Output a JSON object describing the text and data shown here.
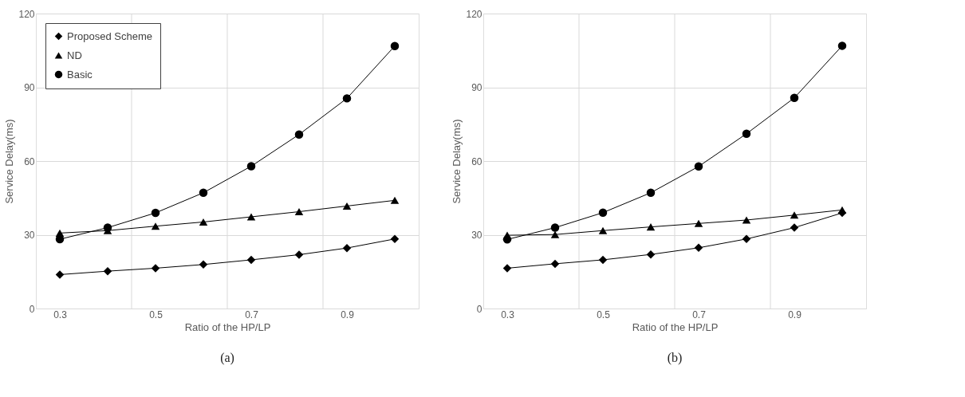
{
  "chart_data": [
    {
      "type": "line",
      "xlabel": "Ratio of the HP/LP",
      "ylabel": "Service Delay(ms)",
      "annotations": [
        "(a)"
      ],
      "x": [
        0.3,
        0.4,
        0.5,
        0.6,
        0.7,
        0.8,
        0.9,
        1.0
      ],
      "xlim": [
        0.25,
        1.05
      ],
      "xticks": [
        0.3,
        {
          "value": 0.45,
          "label": null
        },
        0.5,
        {
          "value": 0.65,
          "label": null
        },
        0.7,
        {
          "value": 0.85,
          "label": null
        },
        0.9
      ],
      "ylim": [
        0,
        120
      ],
      "yticks": [
        0,
        30,
        60,
        90,
        120
      ],
      "grid": true,
      "legend": "top left",
      "series": [
        {
          "name": "Proposed Scheme",
          "color": "#000000",
          "marker": "diamond",
          "values": [
            13.8,
            15.2,
            16.4,
            17.9,
            19.8,
            21.9,
            24.6,
            28.3
          ]
        },
        {
          "name": "ND",
          "color": "#000000",
          "marker": "triangle",
          "values": [
            30.7,
            31.7,
            33.5,
            35.2,
            37.3,
            39.4,
            41.7,
            44.0
          ]
        },
        {
          "name": "Basic",
          "color": "#000000",
          "marker": "circle",
          "values": [
            28.2,
            32.9,
            38.9,
            47.1,
            57.9,
            70.8,
            85.5,
            106.8
          ]
        }
      ]
    },
    {
      "type": "line",
      "xlabel": "Ratio of the HP/LP",
      "ylabel": "Service Delay(ms)",
      "annotations": [
        "(b)"
      ],
      "x": [
        0.3,
        0.4,
        0.5,
        0.6,
        0.7,
        0.8,
        0.9,
        1.0
      ],
      "xlim": [
        0.25,
        1.05
      ],
      "xticks": [
        0.3,
        {
          "value": 0.45,
          "label": null
        },
        0.5,
        {
          "value": 0.65,
          "label": null
        },
        0.7,
        {
          "value": 0.85,
          "label": null
        },
        0.9
      ],
      "ylim": [
        0,
        120
      ],
      "yticks": [
        0,
        30,
        60,
        90,
        120
      ],
      "grid": true,
      "legend": "top left",
      "series": [
        {
          "name": "Proposed Scheme",
          "color": "#000000",
          "marker": "diamond",
          "values": [
            16.4,
            18.2,
            19.8,
            22.0,
            24.7,
            28.3,
            32.9,
            38.9
          ]
        },
        {
          "name": "ND",
          "color": "#000000",
          "marker": "triangle",
          "values": [
            29.8,
            30.1,
            31.7,
            33.2,
            34.6,
            36.0,
            38.0,
            40.1
          ]
        },
        {
          "name": "Basic",
          "color": "#000000",
          "marker": "circle",
          "values": [
            28.1,
            32.9,
            39.0,
            47.1,
            57.8,
            71.1,
            85.7,
            106.9
          ]
        }
      ]
    }
  ]
}
